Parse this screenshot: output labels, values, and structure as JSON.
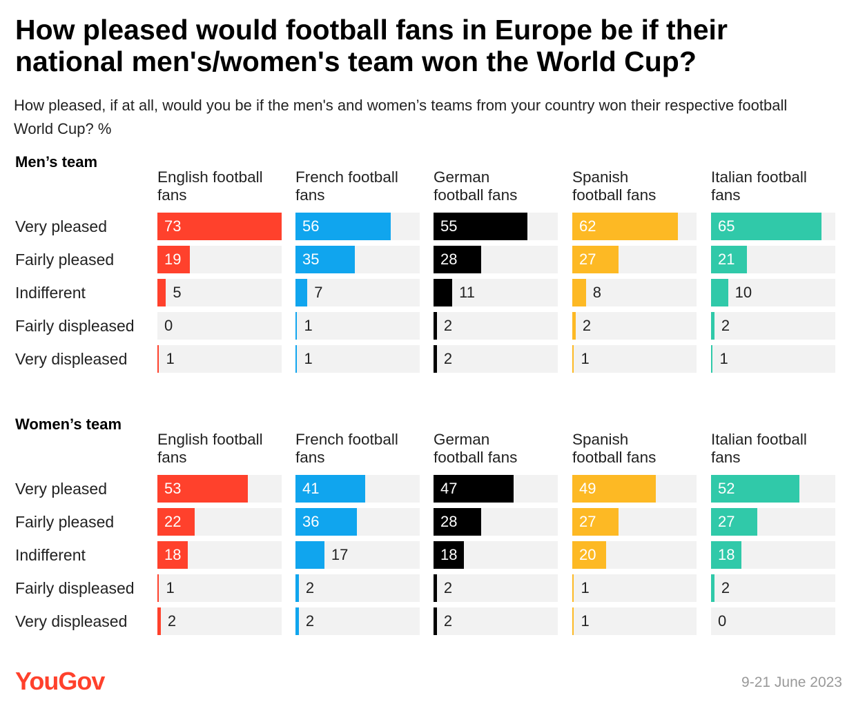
{
  "title": "How pleased would football fans in Europe be if their national men's/women's team won the World Cup?",
  "subtitle": "How pleased, if at all, would you be if the men's and women’s teams from your country won their respective football World Cup? %",
  "logo": "YouGov",
  "date": "9-21 June 2023",
  "chart_data": [
    {
      "type": "bar",
      "title": "Men’s team",
      "categories": [
        "Very pleased",
        "Fairly pleased",
        "Indifferent",
        "Fairly displeased",
        "Very displeased"
      ],
      "series": [
        {
          "name": "English football fans",
          "color": "#ff412c",
          "values": [
            73,
            19,
            5,
            0,
            1
          ]
        },
        {
          "name": "French football fans",
          "color": "#10a5ee",
          "values": [
            56,
            35,
            7,
            1,
            1
          ]
        },
        {
          "name": "German football fans",
          "color": "#000000",
          "values": [
            55,
            28,
            11,
            2,
            2
          ]
        },
        {
          "name": "Spanish football fans",
          "color": "#fdb924",
          "values": [
            62,
            27,
            8,
            2,
            1
          ]
        },
        {
          "name": "Italian football fans",
          "color": "#30c9a9",
          "values": [
            65,
            21,
            10,
            2,
            1
          ]
        }
      ]
    },
    {
      "type": "bar",
      "title": "Women’s team",
      "categories": [
        "Very pleased",
        "Fairly pleased",
        "Indifferent",
        "Fairly displeased",
        "Very displeased"
      ],
      "series": [
        {
          "name": "English football fans",
          "color": "#ff412c",
          "values": [
            53,
            22,
            18,
            1,
            2
          ]
        },
        {
          "name": "French football fans",
          "color": "#10a5ee",
          "values": [
            41,
            36,
            17,
            2,
            2
          ]
        },
        {
          "name": "German football fans",
          "color": "#000000",
          "values": [
            47,
            28,
            18,
            2,
            2
          ]
        },
        {
          "name": "Spanish football fans",
          "color": "#fdb924",
          "values": [
            49,
            27,
            20,
            1,
            1
          ]
        },
        {
          "name": "Italian football fans",
          "color": "#30c9a9",
          "values": [
            52,
            27,
            18,
            2,
            0
          ]
        }
      ]
    }
  ]
}
